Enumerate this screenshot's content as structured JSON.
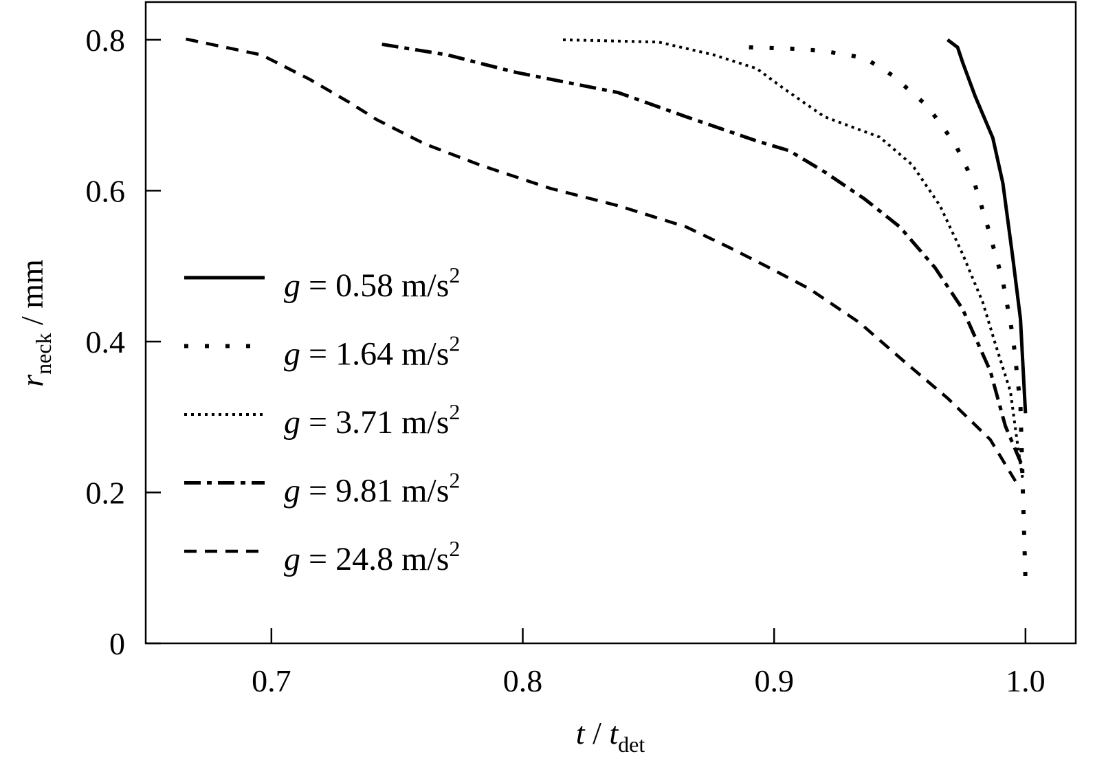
{
  "chart_data": {
    "type": "line",
    "title": "",
    "xlabel": {
      "var": "t",
      "sep": " / ",
      "var2": "t",
      "sub": "det"
    },
    "ylabel": {
      "var": "r",
      "sub": "neck",
      "unit": " / mm"
    },
    "xlim": [
      0.65,
      1.02
    ],
    "ylim": [
      0,
      0.85
    ],
    "xticks": [
      0.7,
      0.8,
      0.9,
      1.0
    ],
    "xtick_labels": [
      "0.7",
      "0.8",
      "0.9",
      "1.0"
    ],
    "yticks": [
      0,
      0.2,
      0.4,
      0.6,
      0.8
    ],
    "ytick_labels": [
      "0",
      "0.2",
      "0.4",
      "0.6",
      "0.8"
    ],
    "grid": false,
    "legend_placement": "center-left",
    "series": [
      {
        "name": "g = 0.58 m/s2",
        "label": {
          "var": "g",
          "text": " = 0.58 m/s",
          "sup": "2"
        },
        "style": "solid",
        "x": [
          0.969,
          0.973,
          0.975,
          0.98,
          0.987,
          0.991,
          0.995,
          0.998,
          1.0
        ],
        "y": [
          0.8,
          0.79,
          0.77,
          0.725,
          0.67,
          0.61,
          0.51,
          0.43,
          0.305
        ]
      },
      {
        "name": "g = 1.64 m/s2",
        "label": {
          "var": "g",
          "text": " = 1.64 m/s",
          "sup": "2"
        },
        "style": "sparse-dotted",
        "x": [
          0.89,
          0.909,
          0.92,
          0.936,
          0.947,
          0.961,
          0.972,
          0.98,
          0.985,
          0.991,
          0.995,
          0.998,
          0.999,
          1.0
        ],
        "y": [
          0.79,
          0.788,
          0.785,
          0.776,
          0.753,
          0.712,
          0.662,
          0.607,
          0.552,
          0.48,
          0.407,
          0.315,
          0.197,
          0.083
        ]
      },
      {
        "name": "g = 3.71 m/s2",
        "label": {
          "var": "g",
          "text": " = 3.71 m/s",
          "sup": "2"
        },
        "style": "dotted",
        "x": [
          0.816,
          0.854,
          0.876,
          0.893,
          0.904,
          0.92,
          0.942,
          0.955,
          0.966,
          0.975,
          0.983,
          0.988,
          0.994,
          0.997,
          0.999
        ],
        "y": [
          0.8,
          0.797,
          0.78,
          0.762,
          0.735,
          0.698,
          0.671,
          0.634,
          0.58,
          0.516,
          0.452,
          0.397,
          0.334,
          0.26,
          0.215
        ]
      },
      {
        "name": "g = 9.81 m/s2",
        "label": {
          "var": "g",
          "text": " = 9.81 m/s",
          "sup": "2"
        },
        "style": "dash-dot",
        "x": [
          0.744,
          0.77,
          0.797,
          0.838,
          0.865,
          0.893,
          0.906,
          0.92,
          0.936,
          0.95,
          0.964,
          0.975,
          0.986,
          0.992,
          0.999
        ],
        "y": [
          0.794,
          0.78,
          0.757,
          0.73,
          0.698,
          0.666,
          0.653,
          0.625,
          0.589,
          0.552,
          0.498,
          0.443,
          0.361,
          0.288,
          0.233
        ]
      },
      {
        "name": "g = 24.8 m/s2",
        "label": {
          "var": "g",
          "text": " = 24.8 m/s",
          "sup": "2"
        },
        "style": "dashed",
        "x": [
          0.666,
          0.696,
          0.715,
          0.731,
          0.742,
          0.761,
          0.783,
          0.811,
          0.838,
          0.865,
          0.882,
          0.898,
          0.914,
          0.934,
          0.953,
          0.969,
          0.986,
          0.996
        ],
        "y": [
          0.801,
          0.78,
          0.748,
          0.717,
          0.694,
          0.662,
          0.634,
          0.603,
          0.58,
          0.552,
          0.525,
          0.498,
          0.47,
          0.425,
          0.37,
          0.325,
          0.27,
          0.215
        ]
      }
    ]
  }
}
